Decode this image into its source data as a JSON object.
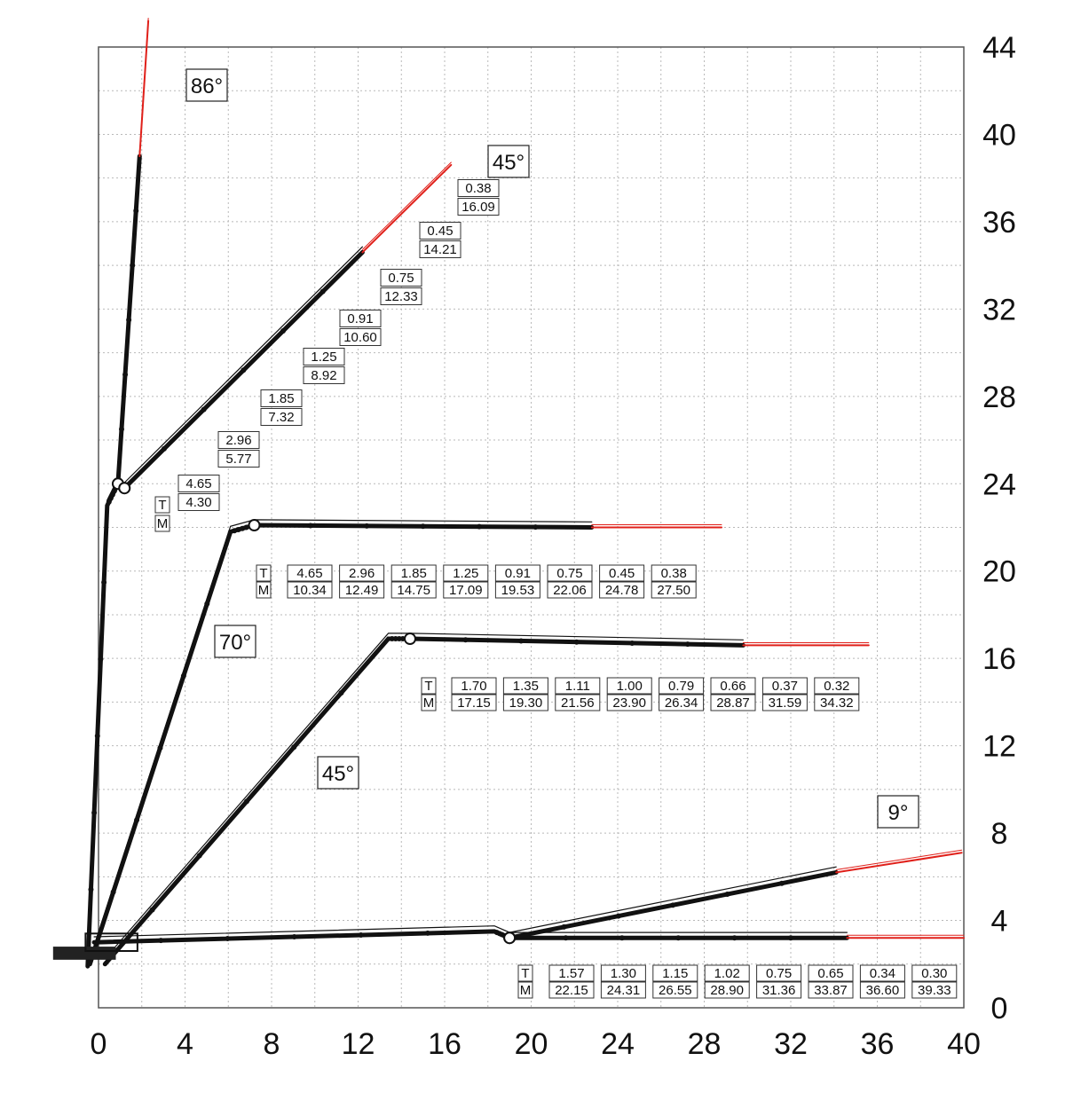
{
  "chart_data": {
    "type": "diagram",
    "title": "",
    "xlabel": "",
    "ylabel": "",
    "xlim": [
      0,
      40
    ],
    "ylim": [
      0,
      44
    ],
    "x_ticks": [
      "0",
      "4",
      "8",
      "12",
      "16",
      "20",
      "24",
      "28",
      "32",
      "36",
      "40"
    ],
    "y_ticks": [
      "0",
      "4",
      "8",
      "12",
      "16",
      "20",
      "24",
      "28",
      "32",
      "36",
      "40",
      "44"
    ],
    "grid": true,
    "row_labels": {
      "t": "T",
      "m": "M"
    },
    "angle_labels": [
      "86°",
      "45°",
      "70°",
      "45°",
      "9°"
    ],
    "configurations": [
      {
        "angle_label": "45°",
        "label_order": "descending-diagonal",
        "pairs": [
          {
            "t": "0.38",
            "m": "16.09"
          },
          {
            "t": "0.45",
            "m": "14.21"
          },
          {
            "t": "0.75",
            "m": "12.33"
          },
          {
            "t": "0.91",
            "m": "10.60"
          },
          {
            "t": "1.25",
            "m": "8.92"
          },
          {
            "t": "1.85",
            "m": "7.32"
          },
          {
            "t": "2.96",
            "m": "5.77"
          },
          {
            "t": "4.65",
            "m": "4.30"
          }
        ]
      },
      {
        "angle_label": "70°",
        "pairs": [
          {
            "t": "4.65",
            "m": "10.34"
          },
          {
            "t": "2.96",
            "m": "12.49"
          },
          {
            "t": "1.85",
            "m": "14.75"
          },
          {
            "t": "1.25",
            "m": "17.09"
          },
          {
            "t": "0.91",
            "m": "19.53"
          },
          {
            "t": "0.75",
            "m": "22.06"
          },
          {
            "t": "0.45",
            "m": "24.78"
          },
          {
            "t": "0.38",
            "m": "27.50"
          }
        ]
      },
      {
        "angle_label": "45°",
        "pairs": [
          {
            "t": "1.70",
            "m": "17.15"
          },
          {
            "t": "1.35",
            "m": "19.30"
          },
          {
            "t": "1.11",
            "m": "21.56"
          },
          {
            "t": "1.00",
            "m": "23.90"
          },
          {
            "t": "0.79",
            "m": "26.34"
          },
          {
            "t": "0.66",
            "m": "28.87"
          },
          {
            "t": "0.37",
            "m": "31.59"
          },
          {
            "t": "0.32",
            "m": "34.32"
          }
        ]
      },
      {
        "angle_label": "9°",
        "pairs": [
          {
            "t": "1.57",
            "m": "22.15"
          },
          {
            "t": "1.30",
            "m": "24.31"
          },
          {
            "t": "1.15",
            "m": "26.55"
          },
          {
            "t": "1.02",
            "m": "28.90"
          },
          {
            "t": "0.75",
            "m": "31.36"
          },
          {
            "t": "0.65",
            "m": "33.87"
          },
          {
            "t": "0.34",
            "m": "36.60"
          },
          {
            "t": "0.30",
            "m": "39.33"
          }
        ]
      }
    ],
    "booms": [
      {
        "name": "86",
        "main": [
          [
            -0.5,
            1.9
          ],
          [
            0.4,
            23.0
          ],
          [
            0.9,
            24.0
          ],
          [
            1.9,
            39.0
          ]
        ],
        "extension": [
          [
            1.9,
            39.0
          ],
          [
            2.3,
            45.2
          ]
        ]
      },
      {
        "name": "45-upper",
        "main": [
          [
            1.2,
            23.8
          ],
          [
            12.2,
            34.6
          ]
        ],
        "extension": [
          [
            12.2,
            34.6
          ],
          [
            16.3,
            38.6
          ]
        ]
      },
      {
        "name": "70",
        "main": [
          [
            -0.4,
            2.0
          ],
          [
            6.1,
            21.8
          ],
          [
            7.2,
            22.1
          ],
          [
            22.8,
            22.0
          ]
        ],
        "extension": [
          [
            22.8,
            22.0
          ],
          [
            28.8,
            22.0
          ]
        ]
      },
      {
        "name": "45-mid",
        "main": [
          [
            0.3,
            2.0
          ],
          [
            13.4,
            16.9
          ],
          [
            14.4,
            16.9
          ],
          [
            29.8,
            16.6
          ]
        ],
        "extension": [
          [
            29.8,
            16.6
          ],
          [
            35.6,
            16.6
          ]
        ]
      },
      {
        "name": "9-flat",
        "main": [
          [
            -0.2,
            3.0
          ],
          [
            18.3,
            3.5
          ],
          [
            19.0,
            3.2
          ],
          [
            34.6,
            3.2
          ]
        ],
        "extension": [
          [
            34.6,
            3.2
          ],
          [
            40.0,
            3.2
          ]
        ]
      },
      {
        "name": "9-raised",
        "main": [
          [
            19.0,
            3.2
          ],
          [
            34.1,
            6.2
          ]
        ],
        "extension": [
          [
            34.1,
            6.2
          ],
          [
            39.9,
            7.1
          ]
        ]
      }
    ],
    "colors": {
      "boom": "#111111",
      "extension": "#e0201a",
      "grid": "#b9b9b9"
    }
  }
}
